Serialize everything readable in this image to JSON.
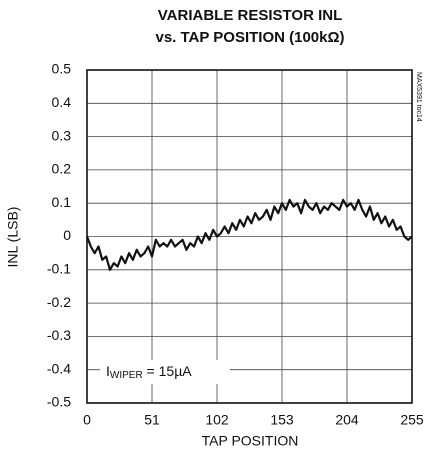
{
  "chart_data": {
    "type": "line",
    "title": "VARIABLE RESISTOR INL",
    "subtitle": "vs. TAP POSITION (100kΩ)",
    "x_label": "TAP POSITION",
    "y_label": "INL (LSB)",
    "annotation": "I",
    "annotation_subscript": "WIPER",
    "annotation_value": " = 15µA",
    "watermark": "MAX5391 toc14",
    "xlim": [
      0,
      255
    ],
    "xticks": [
      0,
      51,
      102,
      153,
      204,
      255
    ],
    "ylim": [
      -0.5,
      0.5
    ],
    "yticks": [
      0.5,
      0.4,
      0.3,
      0.2,
      0.1,
      0,
      -0.1,
      -0.2,
      -0.3,
      -0.4,
      -0.5
    ],
    "grid": true,
    "color": "#111111",
    "x": [
      0,
      3,
      6,
      9,
      12,
      15,
      18,
      21,
      24,
      27,
      30,
      33,
      36,
      39,
      42,
      45,
      48,
      51,
      54,
      57,
      60,
      63,
      66,
      69,
      72,
      75,
      78,
      81,
      84,
      87,
      90,
      93,
      96,
      99,
      102,
      105,
      108,
      111,
      114,
      117,
      120,
      123,
      126,
      129,
      132,
      135,
      138,
      141,
      144,
      147,
      150,
      153,
      156,
      159,
      162,
      165,
      168,
      171,
      174,
      177,
      180,
      183,
      186,
      189,
      192,
      195,
      198,
      201,
      204,
      207,
      210,
      213,
      216,
      219,
      222,
      225,
      228,
      231,
      234,
      237,
      240,
      243,
      246,
      249,
      252,
      255
    ],
    "values": [
      0.0,
      -0.03,
      -0.05,
      -0.03,
      -0.07,
      -0.06,
      -0.1,
      -0.08,
      -0.09,
      -0.06,
      -0.08,
      -0.05,
      -0.07,
      -0.04,
      -0.06,
      -0.05,
      -0.03,
      -0.06,
      -0.01,
      -0.03,
      -0.02,
      -0.03,
      -0.01,
      -0.03,
      -0.02,
      -0.01,
      -0.04,
      -0.02,
      -0.03,
      0.0,
      -0.02,
      0.01,
      -0.01,
      0.02,
      0.0,
      0.01,
      0.03,
      0.01,
      0.04,
      0.02,
      0.05,
      0.03,
      0.06,
      0.04,
      0.07,
      0.05,
      0.06,
      0.08,
      0.05,
      0.09,
      0.07,
      0.1,
      0.08,
      0.11,
      0.09,
      0.1,
      0.07,
      0.11,
      0.09,
      0.08,
      0.1,
      0.07,
      0.09,
      0.08,
      0.1,
      0.09,
      0.08,
      0.11,
      0.09,
      0.1,
      0.08,
      0.11,
      0.08,
      0.06,
      0.09,
      0.05,
      0.07,
      0.04,
      0.06,
      0.03,
      0.05,
      0.02,
      0.03,
      0.0,
      -0.01,
      0.0
    ]
  }
}
